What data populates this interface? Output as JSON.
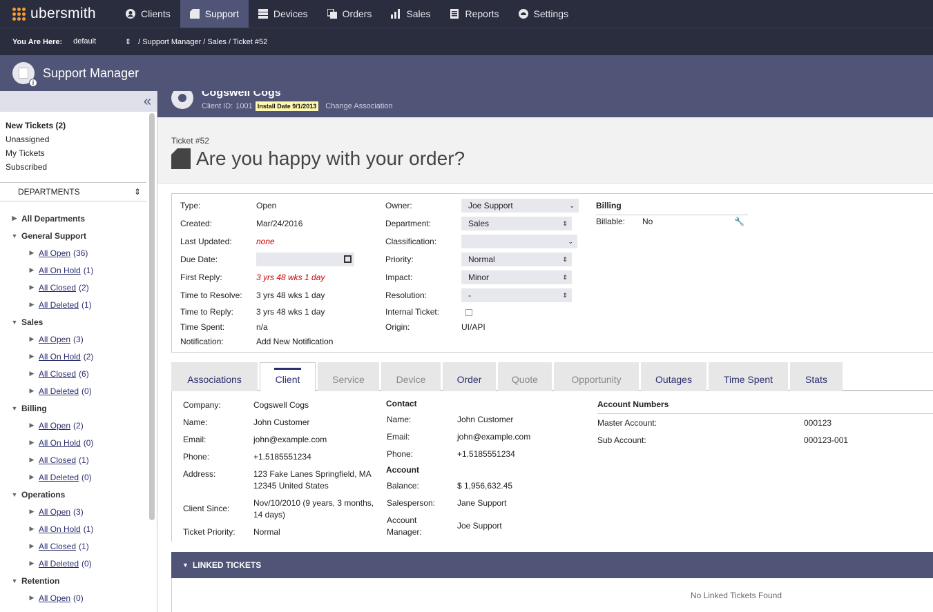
{
  "app": {
    "logo_text": "ubersmith"
  },
  "nav": [
    {
      "label": "Clients",
      "icon": "user-circle-icon"
    },
    {
      "label": "Support",
      "icon": "document-icon",
      "active": true
    },
    {
      "label": "Devices",
      "icon": "server-icon"
    },
    {
      "label": "Orders",
      "icon": "copy-icon"
    },
    {
      "label": "Sales",
      "icon": "bar-chart-icon"
    },
    {
      "label": "Reports",
      "icon": "report-icon"
    },
    {
      "label": "Settings",
      "icon": "gauge-icon"
    }
  ],
  "breadcrumb": {
    "label": "You Are Here:",
    "brand": "default",
    "path": "/  Support Manager / Sales / Ticket #52"
  },
  "section": {
    "title": "Support Manager"
  },
  "sidebar": {
    "quick": [
      {
        "label": "New Tickets (2)"
      },
      {
        "label": "Unassigned"
      },
      {
        "label": "My Tickets"
      },
      {
        "label": "Subscribed"
      }
    ],
    "departments_label": "DEPARTMENTS",
    "all_departments": "All Departments",
    "groups": [
      {
        "name": "General Support",
        "items": [
          {
            "label": "All Open",
            "count": "(36)"
          },
          {
            "label": "All On Hold",
            "count": "(1)"
          },
          {
            "label": "All Closed",
            "count": "(2)"
          },
          {
            "label": "All Deleted",
            "count": "(1)"
          }
        ]
      },
      {
        "name": "Sales",
        "items": [
          {
            "label": "All Open",
            "count": "(3)"
          },
          {
            "label": "All On Hold",
            "count": "(2)"
          },
          {
            "label": "All Closed",
            "count": "(6)"
          },
          {
            "label": "All Deleted",
            "count": "(0)"
          }
        ]
      },
      {
        "name": "Billing",
        "items": [
          {
            "label": "All Open",
            "count": "(2)"
          },
          {
            "label": "All On Hold",
            "count": "(0)"
          },
          {
            "label": "All Closed",
            "count": "(1)"
          },
          {
            "label": "All Deleted",
            "count": "(0)"
          }
        ]
      },
      {
        "name": "Operations",
        "items": [
          {
            "label": "All Open",
            "count": "(3)"
          },
          {
            "label": "All On Hold",
            "count": "(1)"
          },
          {
            "label": "All Closed",
            "count": "(1)"
          },
          {
            "label": "All Deleted",
            "count": "(0)"
          }
        ]
      },
      {
        "name": "Retention",
        "items": [
          {
            "label": "All Open",
            "count": "(0)"
          }
        ]
      }
    ]
  },
  "client_bar": {
    "name": "Cogswell Cogs",
    "id_label": "Client ID:",
    "id": "1001",
    "install_badge": "Install Date 9/1/2013",
    "change_link": "Change Association"
  },
  "ticket": {
    "number_prefix": "Ticket #",
    "number": "52",
    "title": "Are you happy with your order?"
  },
  "details": {
    "type_label": "Type:",
    "type": "Open",
    "created_label": "Created:",
    "created": "Mar/24/2016",
    "updated_label": "Last Updated:",
    "updated": "none",
    "due_label": "Due Date:",
    "first_reply_label": "First Reply:",
    "first_reply": "3 yrs 48 wks 1 day",
    "resolve_label": "Time to Resolve:",
    "resolve": "3 yrs 48 wks 1 day",
    "reply_label": "Time to Reply:",
    "reply": "3 yrs 48 wks 1 day",
    "spent_label": "Time Spent:",
    "spent": "n/a",
    "notification_label": "Notification:",
    "notification_link": "Add New Notification",
    "owner_label": "Owner:",
    "owner": "Joe Support",
    "department_label": "Department:",
    "department": "Sales",
    "classification_label": "Classification:",
    "classification": "",
    "priority_label": "Priority:",
    "priority": "Normal",
    "impact_label": "Impact:",
    "impact": "Minor",
    "resolution_label": "Resolution:",
    "resolution": "-",
    "internal_label": "Internal Ticket:",
    "origin_label": "Origin:",
    "origin": "UI/API",
    "billing_head": "Billing",
    "billable_label": "Billable:",
    "billable": "No"
  },
  "tabs": [
    {
      "label": "Associations"
    },
    {
      "label": "Client",
      "active": true
    },
    {
      "label": "Service"
    },
    {
      "label": "Device"
    },
    {
      "label": "Order"
    },
    {
      "label": "Quote"
    },
    {
      "label": "Opportunity"
    },
    {
      "label": "Outages"
    },
    {
      "label": "Time Spent"
    },
    {
      "label": "Stats"
    }
  ],
  "client_tab": {
    "company_label": "Company:",
    "company": "Cogswell Cogs",
    "name_label": "Name:",
    "name": "John Customer",
    "email_label": "Email:",
    "email": "john@example.com",
    "phone_label": "Phone:",
    "phone": "+1.5185551234",
    "address_label": "Address:",
    "address1": "123 Fake Lanes Springfield, MA",
    "address2": "12345 United States",
    "since_label": "Client Since:",
    "since1": "Nov/10/2010 (9 years, 3 months,",
    "since2": "14 days)",
    "tpriority_label": "Ticket Priority:",
    "tpriority": "Normal",
    "contact_head": "Contact",
    "c_name_label": "Name:",
    "c_name": "John Customer",
    "c_email_label": "Email:",
    "c_email": "john@example.com",
    "c_phone_label": "Phone:",
    "c_phone": "+1.5185551234",
    "account_head": "Account",
    "balance_label": "Balance:",
    "balance": "$ 1,956,632.45",
    "salesperson_label": "Salesperson:",
    "salesperson": "Jane Support",
    "manager_label1": "Account",
    "manager_label2": "Manager:",
    "manager": "Joe Support",
    "acct_numbers_head": "Account Numbers",
    "master_label": "Master Account:",
    "master": "000123",
    "sub_label": "Sub Account:",
    "sub": "000123-001"
  },
  "linked": {
    "title": "LINKED TICKETS",
    "empty": "No Linked Tickets Found"
  }
}
